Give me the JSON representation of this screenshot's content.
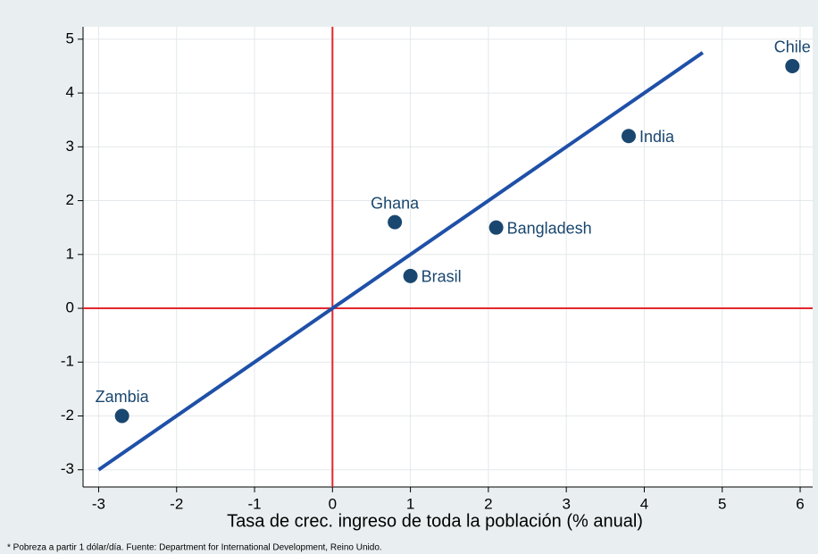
{
  "chart_data": {
    "type": "scatter",
    "x_label": "Tasa de crec. ingreso de toda la población (% anual)",
    "note": "* Pobreza a partir 1 dólar/día. Fuente: Department for International Development, Reino Unido.",
    "labels": [
      "Zambia",
      "Ghana",
      "Brasil",
      "Bangladesh",
      "India",
      "Chile"
    ],
    "x": [
      -2.7,
      0.8,
      1.0,
      2.1,
      3.8,
      5.9
    ],
    "y": [
      -2,
      1.6,
      0.6,
      1.5,
      3.2,
      4.5
    ],
    "label_positions": [
      "above",
      "above",
      "right",
      "right",
      "right",
      "above"
    ],
    "color": "#1a476f",
    "reference_line": {
      "x": [
        -3,
        4.75
      ],
      "y": [
        -3,
        4.75
      ],
      "color": "#1f50a8"
    },
    "zero_lines": {
      "color": "#e3262d"
    },
    "xlim": [
      -3.2,
      6.16
    ],
    "ylim": [
      -3.32,
      5.23
    ],
    "xticks": [
      -3,
      -2,
      -1,
      0,
      1,
      2,
      3,
      4,
      5,
      6
    ],
    "yticks": [
      -3,
      -2,
      -1,
      0,
      1,
      2,
      3,
      4,
      5
    ],
    "grid": true
  }
}
